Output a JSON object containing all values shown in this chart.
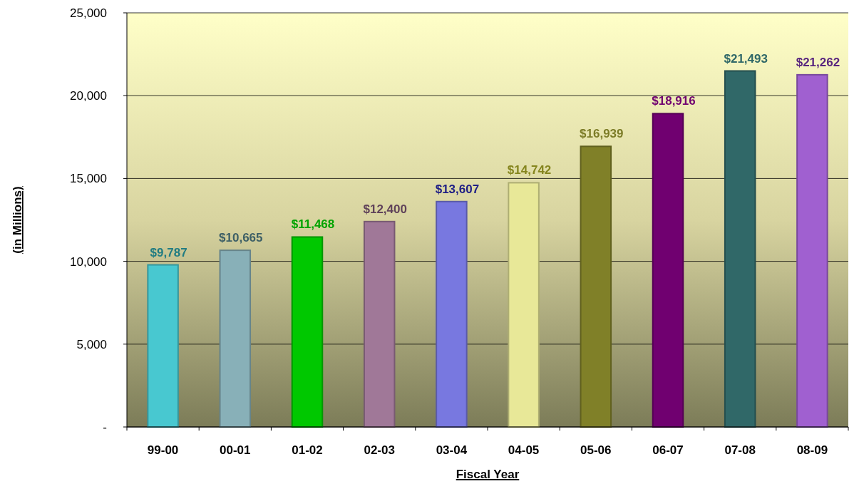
{
  "chart_data": {
    "type": "bar",
    "xlabel": "Fiscal Year",
    "ylabel": "(in Millions)",
    "categories": [
      "99-00",
      "00-01",
      "01-02",
      "02-03",
      "03-04",
      "04-05",
      "05-06",
      "06-07",
      "07-08",
      "08-09"
    ],
    "values": [
      9787,
      10665,
      11468,
      12400,
      13607,
      14742,
      16939,
      18916,
      21493,
      21262
    ],
    "colors": [
      "#48c8d0",
      "#88b0b8",
      "#00c800",
      "#a07898",
      "#7878e0",
      "#e8e898",
      "#808028",
      "#700070",
      "#306868",
      "#a060d0"
    ],
    "value_labels": [
      "$9,787",
      "$10,665",
      "$11,468",
      "$12,400",
      "$13,607",
      "$14,742",
      "$16,939",
      "$18,916",
      "$21,493",
      "$21,262"
    ],
    "ylim": [
      0,
      25000
    ],
    "yticks": [
      {
        "value": 0,
        "label": "-"
      },
      {
        "value": 5000,
        "label": "5,000"
      },
      {
        "value": 10000,
        "label": "10,000"
      },
      {
        "value": 15000,
        "label": "15,000"
      },
      {
        "value": 20000,
        "label": "20,000"
      },
      {
        "value": 25000,
        "label": "25,000"
      }
    ],
    "grid": "y"
  }
}
